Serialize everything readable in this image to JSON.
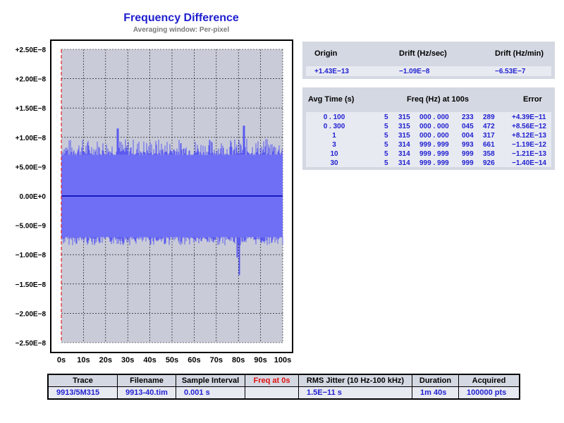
{
  "chart_data": {
    "type": "line",
    "title": "Frequency Difference",
    "subtitle": "Averaging window: Per-pixel",
    "y_tick_labels": [
      "+2.50E−8",
      "+2.00E−8",
      "+1.50E−8",
      "+1.00E−8",
      "+5.00E−9",
      "0.00E+0",
      "−5.00E−9",
      "−1.00E−8",
      "−1.50E−8",
      "−2.00E−8",
      "−2.50E−8"
    ],
    "y_ticks": [
      2.5e-08,
      2e-08,
      1.5e-08,
      1e-08,
      5e-09,
      0,
      -5e-09,
      -1e-08,
      -1.5e-08,
      -2e-08,
      -2.5e-08
    ],
    "x_tick_labels": [
      "0s",
      "10s",
      "20s",
      "30s",
      "40s",
      "50s",
      "60s",
      "70s",
      "80s",
      "90s",
      "100s"
    ],
    "x_ticks": [
      0,
      10,
      20,
      30,
      40,
      50,
      60,
      70,
      80,
      90,
      100
    ],
    "xlim": [
      0,
      100
    ],
    "ylim": [
      -2.5e-08,
      2.5e-08
    ],
    "grid": true,
    "series": [
      {
        "role": "frequency-difference-noise",
        "color": "#5a5af0",
        "fill_color": "#6f6ff5",
        "band_upper": 7e-09,
        "band_lower": -7e-09,
        "envelope_upper": 9e-09,
        "envelope_lower": -8e-09,
        "notable_peaks": [
          {
            "x": 25.5,
            "y": 1.15e-08
          },
          {
            "x": 82.5,
            "y": 1.2e-08
          },
          {
            "x": 80.5,
            "y": -1.35e-08
          },
          {
            "x": 79.5,
            "y": -1.05e-08
          }
        ]
      },
      {
        "role": "mean-line",
        "color": "#1a1ac0",
        "y": 0
      }
    ],
    "marker_line": {
      "x": 0,
      "color": "#e02020",
      "style": "dashed"
    }
  },
  "drift": {
    "headers": {
      "origin": "Origin",
      "drift_sec": "Drift (Hz/sec)",
      "drift_min": "Drift (Hz/min)"
    },
    "values": {
      "origin": "+1.43E−13",
      "drift_sec": "−1.09E−8",
      "drift_min": "−6.53E−7"
    }
  },
  "averaging": {
    "headers": {
      "avg_time": "Avg Time (s)",
      "freq": "Freq (Hz) at 100s",
      "error": "Error"
    },
    "rows": [
      {
        "avg": "0 . 100",
        "f1": "5",
        "f2": "315",
        "f3": "000 . 000",
        "f4": "233",
        "f5": "289",
        "err": "+4.39E−11"
      },
      {
        "avg": "0 . 300",
        "f1": "5",
        "f2": "315",
        "f3": "000 . 000",
        "f4": "045",
        "f5": "472",
        "err": "+8.56E−12"
      },
      {
        "avg": "1",
        "f1": "5",
        "f2": "315",
        "f3": "000 . 000",
        "f4": "004",
        "f5": "317",
        "err": "+8.12E−13"
      },
      {
        "avg": "3",
        "f1": "5",
        "f2": "314",
        "f3": "999 . 999",
        "f4": "993",
        "f5": "661",
        "err": "−1.19E−12"
      },
      {
        "avg": "10",
        "f1": "5",
        "f2": "314",
        "f3": "999 . 999",
        "f4": "999",
        "f5": "358",
        "err": "−1.21E−13"
      },
      {
        "avg": "30",
        "f1": "5",
        "f2": "314",
        "f3": "999 . 999",
        "f4": "999",
        "f5": "926",
        "err": "−1.40E−14"
      }
    ]
  },
  "info": {
    "headers": {
      "trace": "Trace",
      "filename": "Filename",
      "sample_interval": "Sample Interval",
      "freq_at_0": "Freq at 0s",
      "rms_jitter": "RMS Jitter (10 Hz-100 kHz)",
      "duration": "Duration",
      "acquired": "Acquired"
    },
    "values": {
      "trace": "9913/5M315",
      "filename": "9913-40.tim",
      "sample_interval": "0.001 s",
      "freq_at_0": "",
      "rms_jitter": "1.5E−11 s",
      "duration": "1m 40s",
      "acquired": "100000 pts"
    }
  }
}
